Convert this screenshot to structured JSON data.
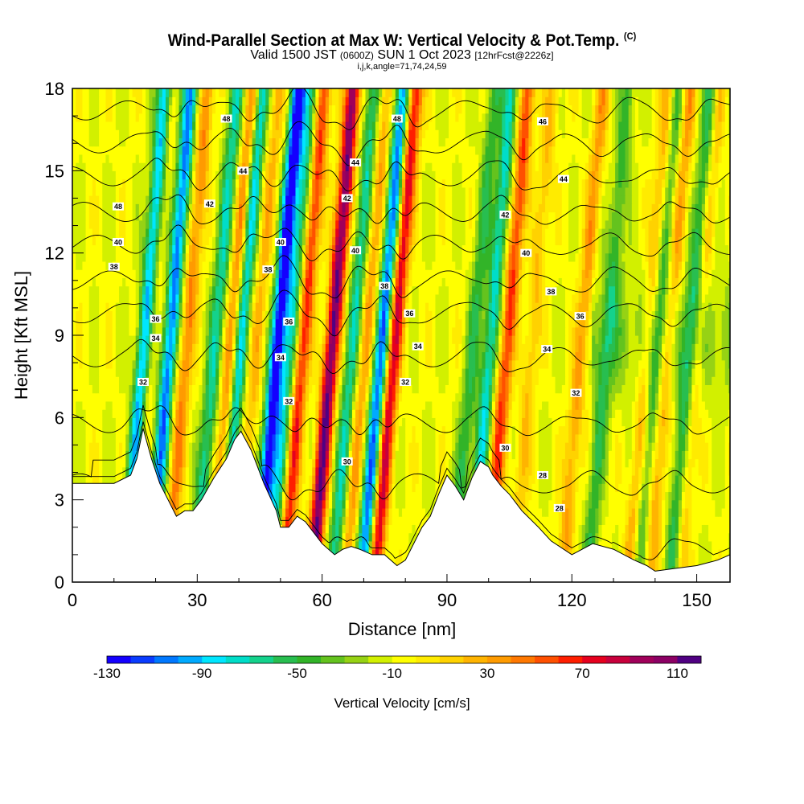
{
  "title": {
    "main": "Wind-Parallel Section at Max W: Vertical Velocity & Pot.Temp.",
    "copyright": "(C)",
    "valid_prefix": "Valid 1500 JST",
    "valid_utc": "(0600Z)",
    "valid_date": "SUN 1 Oct 2023",
    "forecast": "[12hrFcst@2226z]",
    "indices": "i,j,k,angle=71,74,24,59"
  },
  "chart_data": {
    "type": "heatmap",
    "xlabel": "Distance [nm]",
    "ylabel": "Height [Kft MSL]",
    "xlim": [
      0,
      158
    ],
    "ylim": [
      0,
      18
    ],
    "x_ticks": [
      0,
      30,
      60,
      90,
      120,
      150
    ],
    "y_ticks": [
      0,
      3,
      6,
      9,
      12,
      15,
      18
    ],
    "colorbar": {
      "label": "Vertical Velocity [cm/s]",
      "tick_labels": [
        "-130",
        "-90",
        "-50",
        "-10",
        "30",
        "70",
        "110"
      ],
      "min": -130,
      "max": 120,
      "step": 10,
      "colors": [
        "#1400ff",
        "#0a3cff",
        "#0078ff",
        "#00aaff",
        "#00e6ff",
        "#00ddc8",
        "#14d28c",
        "#28be50",
        "#32b428",
        "#64c31e",
        "#96d214",
        "#d2f000",
        "#ffff00",
        "#ffeb00",
        "#ffd200",
        "#ffb400",
        "#ff9b00",
        "#ff7800",
        "#ff5000",
        "#ff1e00",
        "#e6001e",
        "#c8003c",
        "#a0005a",
        "#8c0064",
        "#500082"
      ]
    },
    "updraft_bands_nm": [
      {
        "x": 18,
        "w": 40
      },
      {
        "x": 27,
        "w": 50
      },
      {
        "x": 38,
        "w": 55
      },
      {
        "x": 44,
        "w": 30
      },
      {
        "x": 55,
        "w": 75
      },
      {
        "x": 62,
        "w": 120
      },
      {
        "x": 70,
        "w": 40
      },
      {
        "x": 77,
        "w": 90
      },
      {
        "x": 104,
        "w": 70
      },
      {
        "x": 110,
        "w": 30
      },
      {
        "x": 122,
        "w": 40
      },
      {
        "x": 138,
        "w": 40
      },
      {
        "x": 143,
        "w": 40
      },
      {
        "x": 150,
        "w": 30
      }
    ],
    "downdraft_bands_nm": [
      {
        "x": 17,
        "w": -110
      },
      {
        "x": 23,
        "w": -100
      },
      {
        "x": 34,
        "w": -60
      },
      {
        "x": 40,
        "w": -80
      },
      {
        "x": 49,
        "w": -130
      },
      {
        "x": 52,
        "w": -60
      },
      {
        "x": 67,
        "w": -60
      },
      {
        "x": 74,
        "w": -100
      },
      {
        "x": 96,
        "w": -40
      },
      {
        "x": 100,
        "w": -70
      },
      {
        "x": 128,
        "w": -40
      },
      {
        "x": 140,
        "w": -40
      },
      {
        "x": 148,
        "w": -50
      }
    ],
    "terrain_kft": {
      "x": [
        0,
        10,
        14,
        15.5,
        17,
        19,
        21,
        23,
        25,
        27,
        29,
        31,
        34,
        37,
        39,
        40.5,
        43,
        46,
        49,
        50,
        52,
        54,
        56,
        58,
        60,
        63,
        65,
        67,
        69,
        72,
        75,
        78,
        80,
        84,
        86,
        88,
        90,
        92,
        94,
        96,
        98,
        100,
        101,
        103,
        105,
        108,
        112,
        115,
        120,
        125,
        130,
        135,
        138,
        140,
        145,
        150,
        155,
        158
      ],
      "y": [
        3.6,
        3.6,
        3.9,
        4.5,
        5.6,
        4.5,
        3.6,
        3.0,
        2.4,
        2.6,
        2.6,
        3.0,
        3.8,
        4.5,
        5.2,
        5.5,
        4.8,
        3.6,
        2.6,
        2.0,
        2.0,
        2.4,
        2.2,
        1.8,
        1.4,
        1.0,
        1.2,
        1.3,
        1.2,
        1.0,
        1.0,
        0.6,
        0.8,
        2.0,
        2.4,
        3.2,
        3.9,
        3.5,
        3.0,
        3.8,
        4.4,
        4.2,
        3.9,
        3.5,
        3.2,
        2.6,
        2.0,
        1.5,
        1.0,
        1.4,
        1.2,
        0.8,
        0.6,
        0.4,
        0.5,
        0.6,
        0.8,
        1.0
      ]
    },
    "theta_contours": [
      {
        "label": "28",
        "base": 1.2
      },
      {
        "label": "30",
        "base": 3.6
      },
      {
        "label": "32",
        "base": 5.8
      },
      {
        "label": "34",
        "base": 8.2
      },
      {
        "label": "36",
        "base": 9.8
      },
      {
        "label": "38",
        "base": 11.0
      },
      {
        "label": "40",
        "base": 12.3
      },
      {
        "label": "42",
        "base": 13.5
      },
      {
        "label": "44",
        "base": 14.8
      },
      {
        "label": "46",
        "base": 16.0
      },
      {
        "label": "48",
        "base": 17.2
      }
    ],
    "contour_labels": [
      {
        "text": "48",
        "x": 11,
        "y": 13.7
      },
      {
        "text": "40",
        "x": 11,
        "y": 12.4
      },
      {
        "text": "38",
        "x": 10,
        "y": 11.5
      },
      {
        "text": "36",
        "x": 20,
        "y": 9.6
      },
      {
        "text": "34",
        "x": 20,
        "y": 8.9
      },
      {
        "text": "32",
        "x": 17,
        "y": 7.3
      },
      {
        "text": "48",
        "x": 37,
        "y": 16.9
      },
      {
        "text": "44",
        "x": 41,
        "y": 15.0
      },
      {
        "text": "42",
        "x": 33,
        "y": 13.8
      },
      {
        "text": "40",
        "x": 50,
        "y": 12.4
      },
      {
        "text": "38",
        "x": 47,
        "y": 11.4
      },
      {
        "text": "36",
        "x": 52,
        "y": 9.5
      },
      {
        "text": "34",
        "x": 50,
        "y": 8.2
      },
      {
        "text": "32",
        "x": 52,
        "y": 6.6
      },
      {
        "text": "30",
        "x": 66,
        "y": 4.4
      },
      {
        "text": "48",
        "x": 78,
        "y": 16.9
      },
      {
        "text": "44",
        "x": 68,
        "y": 15.3
      },
      {
        "text": "42",
        "x": 66,
        "y": 14.0
      },
      {
        "text": "40",
        "x": 68,
        "y": 12.1
      },
      {
        "text": "38",
        "x": 75,
        "y": 10.8
      },
      {
        "text": "36",
        "x": 81,
        "y": 9.8
      },
      {
        "text": "34",
        "x": 83,
        "y": 8.6
      },
      {
        "text": "32",
        "x": 80,
        "y": 7.3
      },
      {
        "text": "30",
        "x": 104,
        "y": 4.9
      },
      {
        "text": "46",
        "x": 113,
        "y": 16.8
      },
      {
        "text": "44",
        "x": 118,
        "y": 14.7
      },
      {
        "text": "42",
        "x": 104,
        "y": 13.4
      },
      {
        "text": "40",
        "x": 109,
        "y": 12.0
      },
      {
        "text": "38",
        "x": 115,
        "y": 10.6
      },
      {
        "text": "36",
        "x": 122,
        "y": 9.7
      },
      {
        "text": "34",
        "x": 114,
        "y": 8.5
      },
      {
        "text": "32",
        "x": 121,
        "y": 6.9
      },
      {
        "text": "28",
        "x": 113,
        "y": 3.9
      },
      {
        "text": "28",
        "x": 117,
        "y": 2.7
      }
    ]
  }
}
